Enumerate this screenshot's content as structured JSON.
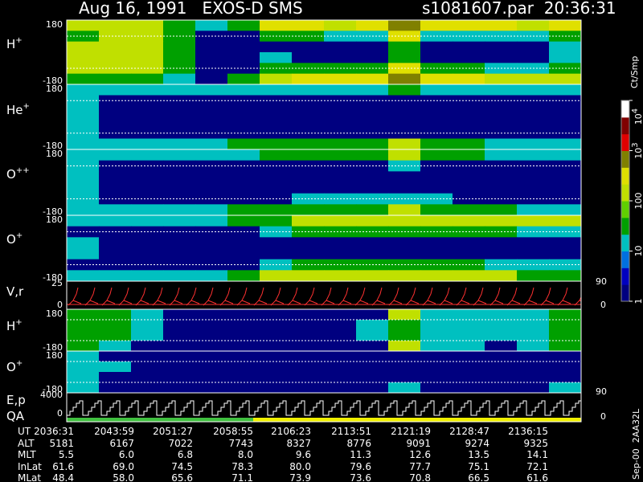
{
  "header": {
    "left": "Aug 16, 1991   EXOS-D SMS",
    "right": "s1081607.par  20:36:31"
  },
  "spectrograms": [
    {
      "ion": "H",
      "charge": "+",
      "tick_top": "180",
      "tick_bottom": "-180",
      "cells": [
        [
          100,
          100,
          100,
          30,
          10,
          30,
          300,
          300,
          100,
          300,
          1000,
          300,
          300,
          300,
          100,
          300
        ],
        [
          30,
          100,
          100,
          30,
          1,
          1,
          30,
          30,
          10,
          10,
          300,
          10,
          10,
          10,
          10,
          30
        ],
        [
          100,
          100,
          100,
          30,
          1,
          1,
          1,
          1,
          1,
          1,
          30,
          1,
          1,
          1,
          1,
          10
        ],
        [
          100,
          100,
          100,
          30,
          1,
          1,
          10,
          1,
          1,
          1,
          30,
          1,
          1,
          1,
          1,
          10
        ],
        [
          100,
          100,
          100,
          30,
          1,
          1,
          30,
          30,
          30,
          30,
          300,
          30,
          30,
          10,
          10,
          30
        ],
        [
          30,
          30,
          30,
          10,
          1,
          30,
          100,
          300,
          300,
          300,
          1000,
          300,
          300,
          100,
          100,
          100
        ]
      ]
    },
    {
      "ion": "He",
      "charge": "+",
      "tick_top": "180",
      "tick_bottom": "-180",
      "cells": [
        [
          10,
          10,
          10,
          10,
          10,
          10,
          10,
          10,
          10,
          10,
          30,
          10,
          10,
          10,
          10,
          10
        ],
        [
          10,
          1,
          1,
          1,
          1,
          1,
          1,
          1,
          1,
          1,
          1,
          1,
          1,
          1,
          1,
          1
        ],
        [
          10,
          1,
          1,
          1,
          1,
          1,
          1,
          1,
          1,
          1,
          1,
          1,
          1,
          1,
          1,
          1
        ],
        [
          10,
          1,
          1,
          1,
          1,
          1,
          1,
          1,
          1,
          1,
          1,
          1,
          1,
          1,
          1,
          1
        ],
        [
          10,
          1,
          1,
          1,
          1,
          1,
          1,
          1,
          1,
          1,
          1,
          1,
          1,
          1,
          1,
          1
        ],
        [
          10,
          10,
          10,
          10,
          10,
          30,
          30,
          30,
          30,
          30,
          100,
          30,
          30,
          10,
          10,
          10
        ]
      ]
    },
    {
      "ion": "O",
      "charge": "++",
      "tick_top": "180",
      "tick_bottom": "-180",
      "cells": [
        [
          10,
          10,
          10,
          10,
          10,
          10,
          30,
          30,
          30,
          30,
          100,
          30,
          30,
          10,
          10,
          10
        ],
        [
          10,
          1,
          1,
          1,
          1,
          1,
          1,
          1,
          1,
          1,
          10,
          1,
          1,
          1,
          1,
          1
        ],
        [
          10,
          1,
          1,
          1,
          1,
          1,
          1,
          1,
          1,
          1,
          1,
          1,
          1,
          1,
          1,
          1
        ],
        [
          10,
          1,
          1,
          1,
          1,
          1,
          1,
          1,
          1,
          1,
          1,
          1,
          1,
          1,
          1,
          1
        ],
        [
          10,
          1,
          1,
          1,
          1,
          1,
          1,
          10,
          10,
          10,
          10,
          10,
          1,
          1,
          1,
          1
        ],
        [
          10,
          10,
          10,
          10,
          10,
          30,
          30,
          30,
          30,
          30,
          100,
          30,
          30,
          30,
          10,
          10
        ]
      ]
    },
    {
      "ion": "O",
      "charge": "+",
      "tick_top": "180",
      "tick_bottom": "-180",
      "cells": [
        [
          10,
          10,
          10,
          10,
          10,
          30,
          30,
          100,
          100,
          100,
          100,
          100,
          100,
          100,
          100,
          100
        ],
        [
          1,
          1,
          1,
          1,
          1,
          1,
          10,
          30,
          30,
          30,
          30,
          30,
          30,
          30,
          10,
          10
        ],
        [
          10,
          1,
          1,
          1,
          1,
          1,
          1,
          1,
          1,
          1,
          1,
          1,
          1,
          1,
          1,
          1
        ],
        [
          10,
          1,
          1,
          1,
          1,
          1,
          1,
          1,
          1,
          1,
          1,
          1,
          1,
          1,
          1,
          1
        ],
        [
          1,
          1,
          1,
          1,
          1,
          1,
          10,
          30,
          30,
          30,
          30,
          30,
          30,
          10,
          10,
          10
        ],
        [
          10,
          10,
          10,
          10,
          10,
          30,
          100,
          100,
          100,
          100,
          100,
          100,
          100,
          100,
          30,
          30
        ]
      ]
    },
    {
      "ion": "H",
      "charge": "+",
      "tick_top": "180",
      "tick_bottom": "-180",
      "cells": [
        [
          30,
          30,
          10,
          1,
          1,
          1,
          1,
          1,
          1,
          1,
          100,
          10,
          10,
          10,
          10,
          30
        ],
        [
          30,
          30,
          10,
          1,
          1,
          1,
          1,
          1,
          1,
          10,
          30,
          10,
          10,
          10,
          10,
          30
        ],
        [
          30,
          30,
          10,
          1,
          1,
          1,
          1,
          1,
          1,
          10,
          30,
          10,
          10,
          10,
          10,
          30
        ],
        [
          30,
          10,
          1,
          1,
          1,
          1,
          1,
          1,
          1,
          1,
          100,
          10,
          10,
          1,
          10,
          30
        ]
      ]
    },
    {
      "ion": "O",
      "charge": "+",
      "tick_top": "180",
      "tick_bottom": "-180",
      "right_tick": "90",
      "cells": [
        [
          10,
          1,
          1,
          1,
          1,
          1,
          1,
          1,
          1,
          1,
          1,
          1,
          1,
          1,
          1,
          1
        ],
        [
          10,
          10,
          1,
          1,
          1,
          1,
          1,
          1,
          1,
          1,
          1,
          1,
          1,
          1,
          1,
          1
        ],
        [
          10,
          1,
          1,
          1,
          1,
          1,
          1,
          1,
          1,
          1,
          1,
          1,
          1,
          1,
          1,
          1
        ],
        [
          10,
          1,
          1,
          1,
          1,
          1,
          1,
          1,
          1,
          1,
          10,
          1,
          1,
          1,
          1,
          10
        ]
      ]
    }
  ],
  "vr": {
    "label": "V,r",
    "tick_top": "25",
    "tick_zero": "0",
    "right_top": "90",
    "right_zero": "0"
  },
  "ep": {
    "label": "E,p",
    "label2": "QA",
    "tick_top": "4000",
    "tick_zero": "0",
    "right_zero": "0"
  },
  "colorbar": {
    "title": "Ct/Smp",
    "range": [
      1,
      10000
    ],
    "colors": [
      "#000080",
      "#0000c0",
      "#0070e0",
      "#00c0c0",
      "#00a000",
      "#60d000",
      "#c0e000",
      "#e0e000",
      "#808000",
      "#e00000",
      "#800000",
      "#ffffff"
    ],
    "ticks": [
      {
        "value": 10000,
        "base": "10",
        "exp": "4"
      },
      {
        "value": 1000,
        "base": "10",
        "exp": "3"
      },
      {
        "value": 100,
        "label": "100"
      },
      {
        "value": 10,
        "label": "10"
      },
      {
        "value": 1,
        "label": "1"
      }
    ]
  },
  "footer": "Sep-00  2AA32L",
  "table": {
    "rows": [
      {
        "label": "UT",
        "values": [
          "2036:31",
          "2043:59",
          "2051:27",
          "2058:55",
          "2106:23",
          "2113:51",
          "2121:19",
          "2128:47",
          "2136:15"
        ]
      },
      {
        "label": "ALT",
        "values": [
          "5181",
          "6167",
          "7022",
          "7743",
          "8327",
          "8776",
          "9091",
          "9274",
          "9325"
        ]
      },
      {
        "label": "MLT",
        "values": [
          "5.5",
          "6.0",
          "6.8",
          "8.0",
          "9.6",
          "11.3",
          "12.6",
          "13.5",
          "14.1"
        ]
      },
      {
        "label": "InLat",
        "values": [
          "61.6",
          "69.0",
          "74.5",
          "78.3",
          "80.0",
          "79.6",
          "77.7",
          "75.1",
          "72.1"
        ]
      },
      {
        "label": "MLat",
        "values": [
          "48.4",
          "58.0",
          "65.6",
          "71.1",
          "73.9",
          "73.6",
          "70.8",
          "66.5",
          "61.6"
        ]
      }
    ]
  }
}
